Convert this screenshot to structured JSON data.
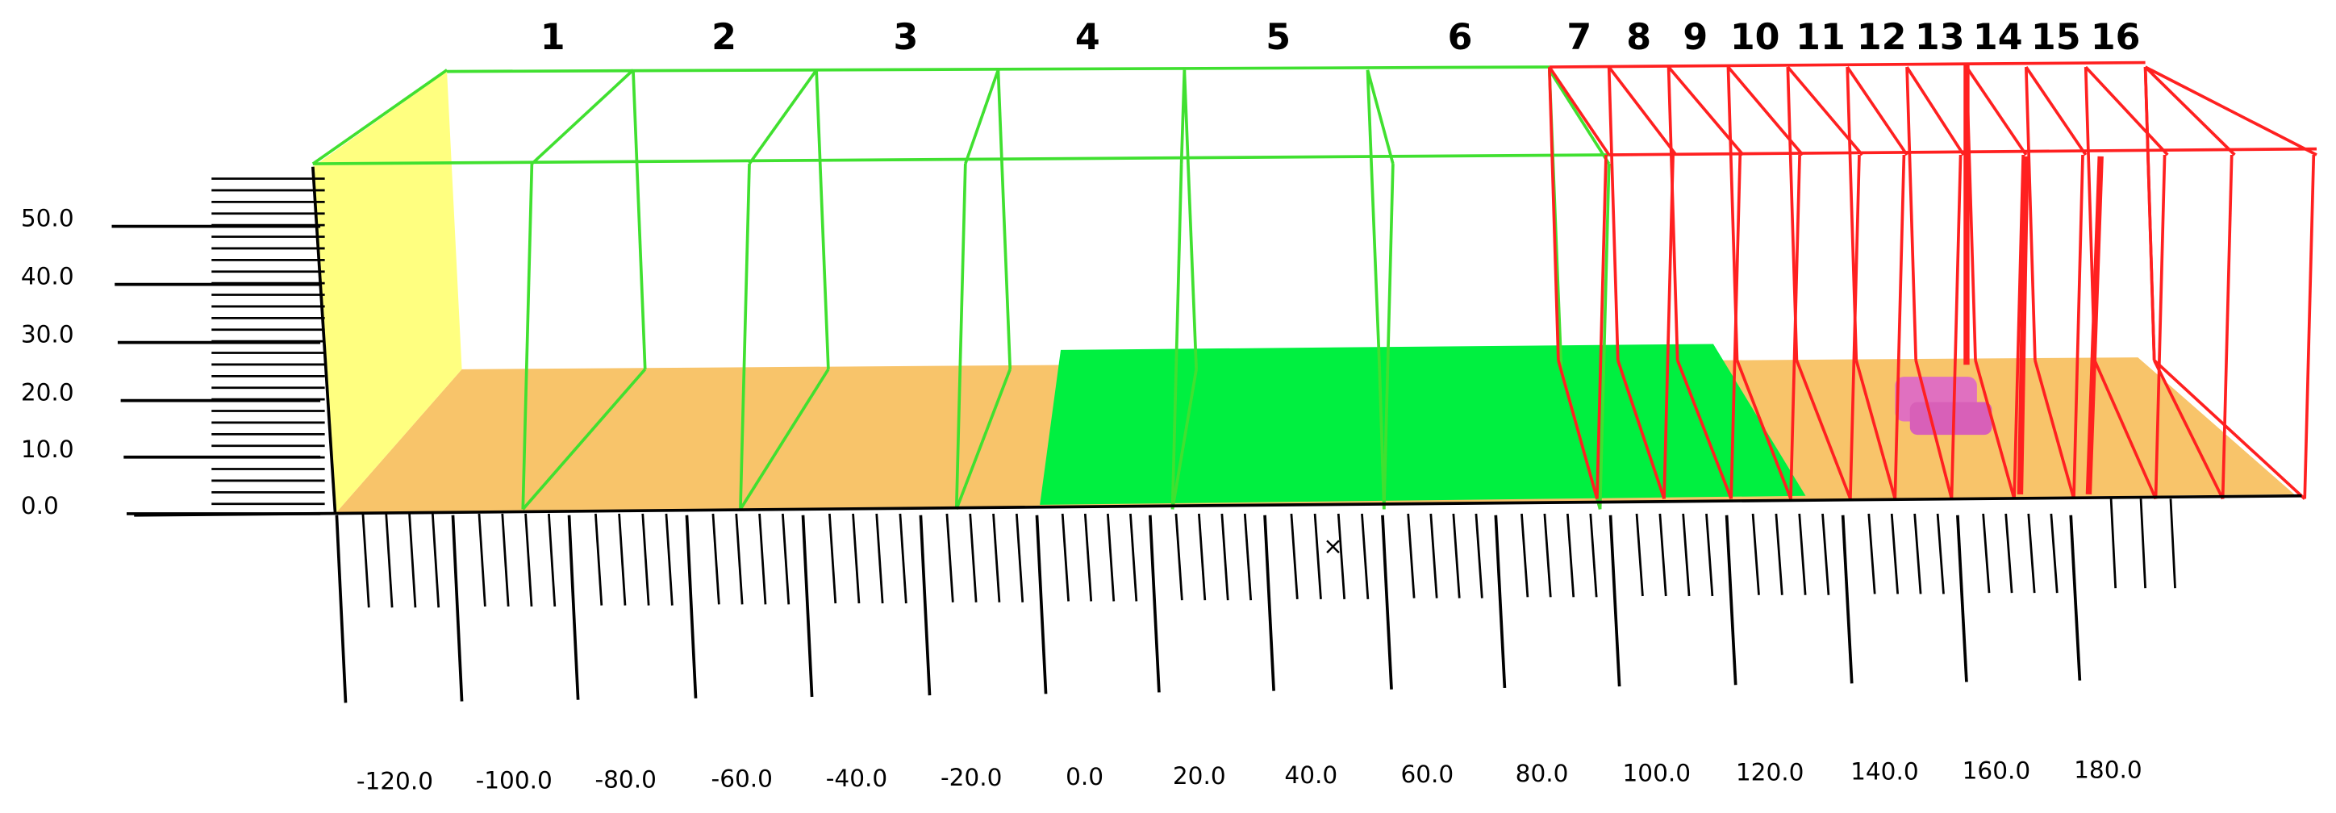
{
  "bay_labels": [
    "1",
    "2",
    "3",
    "4",
    "5",
    "6",
    "7",
    "8",
    "9",
    "10",
    "11",
    "12",
    "13",
    "14",
    "15",
    "16"
  ],
  "y_axis_labels": [
    "50.0",
    "40.0",
    "30.0",
    "20.0",
    "10.0",
    "0.0"
  ],
  "x_axis_labels": [
    "-120.0",
    "-100.0",
    "-80.0",
    "-60.0",
    "-40.0",
    "-20.0",
    "0.0",
    "20.0",
    "40.0",
    "60.0",
    "80.0",
    "100.0",
    "120.0",
    "140.0",
    "160.0",
    "180.0"
  ]
}
